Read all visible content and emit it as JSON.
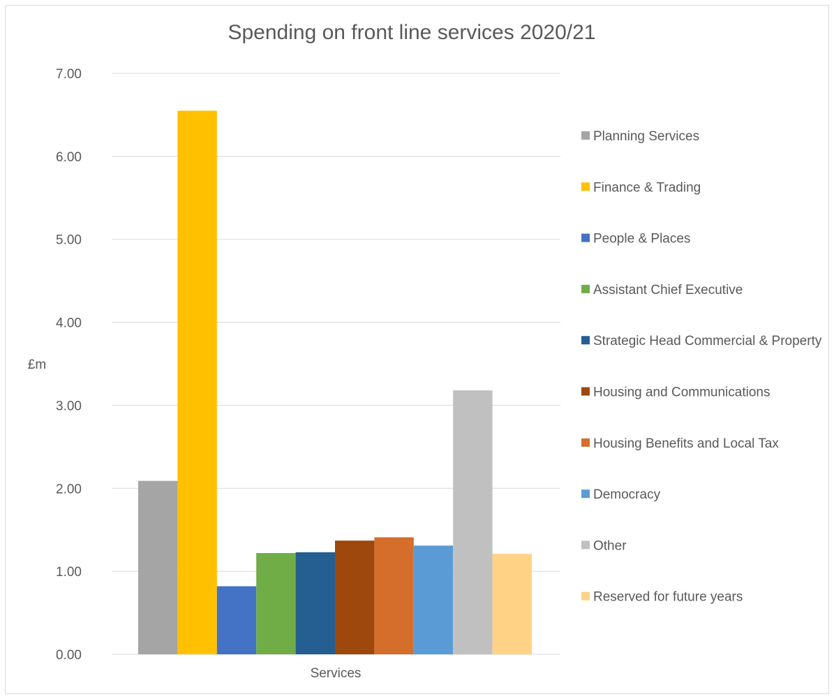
{
  "chart_data": {
    "type": "bar",
    "title": "Spending on front line services 2020/21",
    "xlabel": "",
    "ylabel": "£m",
    "categories": [
      "Services"
    ],
    "ylim": [
      0,
      7
    ],
    "y_ticks": [
      "0.00",
      "1.00",
      "2.00",
      "3.00",
      "4.00",
      "5.00",
      "6.00",
      "7.00"
    ],
    "grid": true,
    "legend_position": "right",
    "series": [
      {
        "name": "Planning Services",
        "color": "#a5a5a5",
        "values": [
          2.09
        ]
      },
      {
        "name": "Finance & Trading",
        "color": "#ffc000",
        "values": [
          6.55
        ]
      },
      {
        "name": "People & Places",
        "color": "#4472c4",
        "values": [
          0.82
        ]
      },
      {
        "name": "Assistant Chief Executive",
        "color": "#70ad47",
        "values": [
          1.22
        ]
      },
      {
        "name": "Strategic Head Commercial & Property",
        "color": "#255e91",
        "values": [
          1.23
        ]
      },
      {
        "name": "Housing and Communications",
        "color": "#9e480e",
        "values": [
          1.37
        ]
      },
      {
        "name": "Housing Benefits and Local Tax",
        "color": "#d46e2a",
        "values": [
          1.41
        ]
      },
      {
        "name": "Democracy",
        "color": "#5b9bd5",
        "values": [
          1.31
        ]
      },
      {
        "name": "Other",
        "color": "#c0c0c0",
        "values": [
          3.18
        ]
      },
      {
        "name": "Reserved for future years",
        "color": "#ffd285",
        "values": [
          1.21
        ]
      }
    ]
  }
}
